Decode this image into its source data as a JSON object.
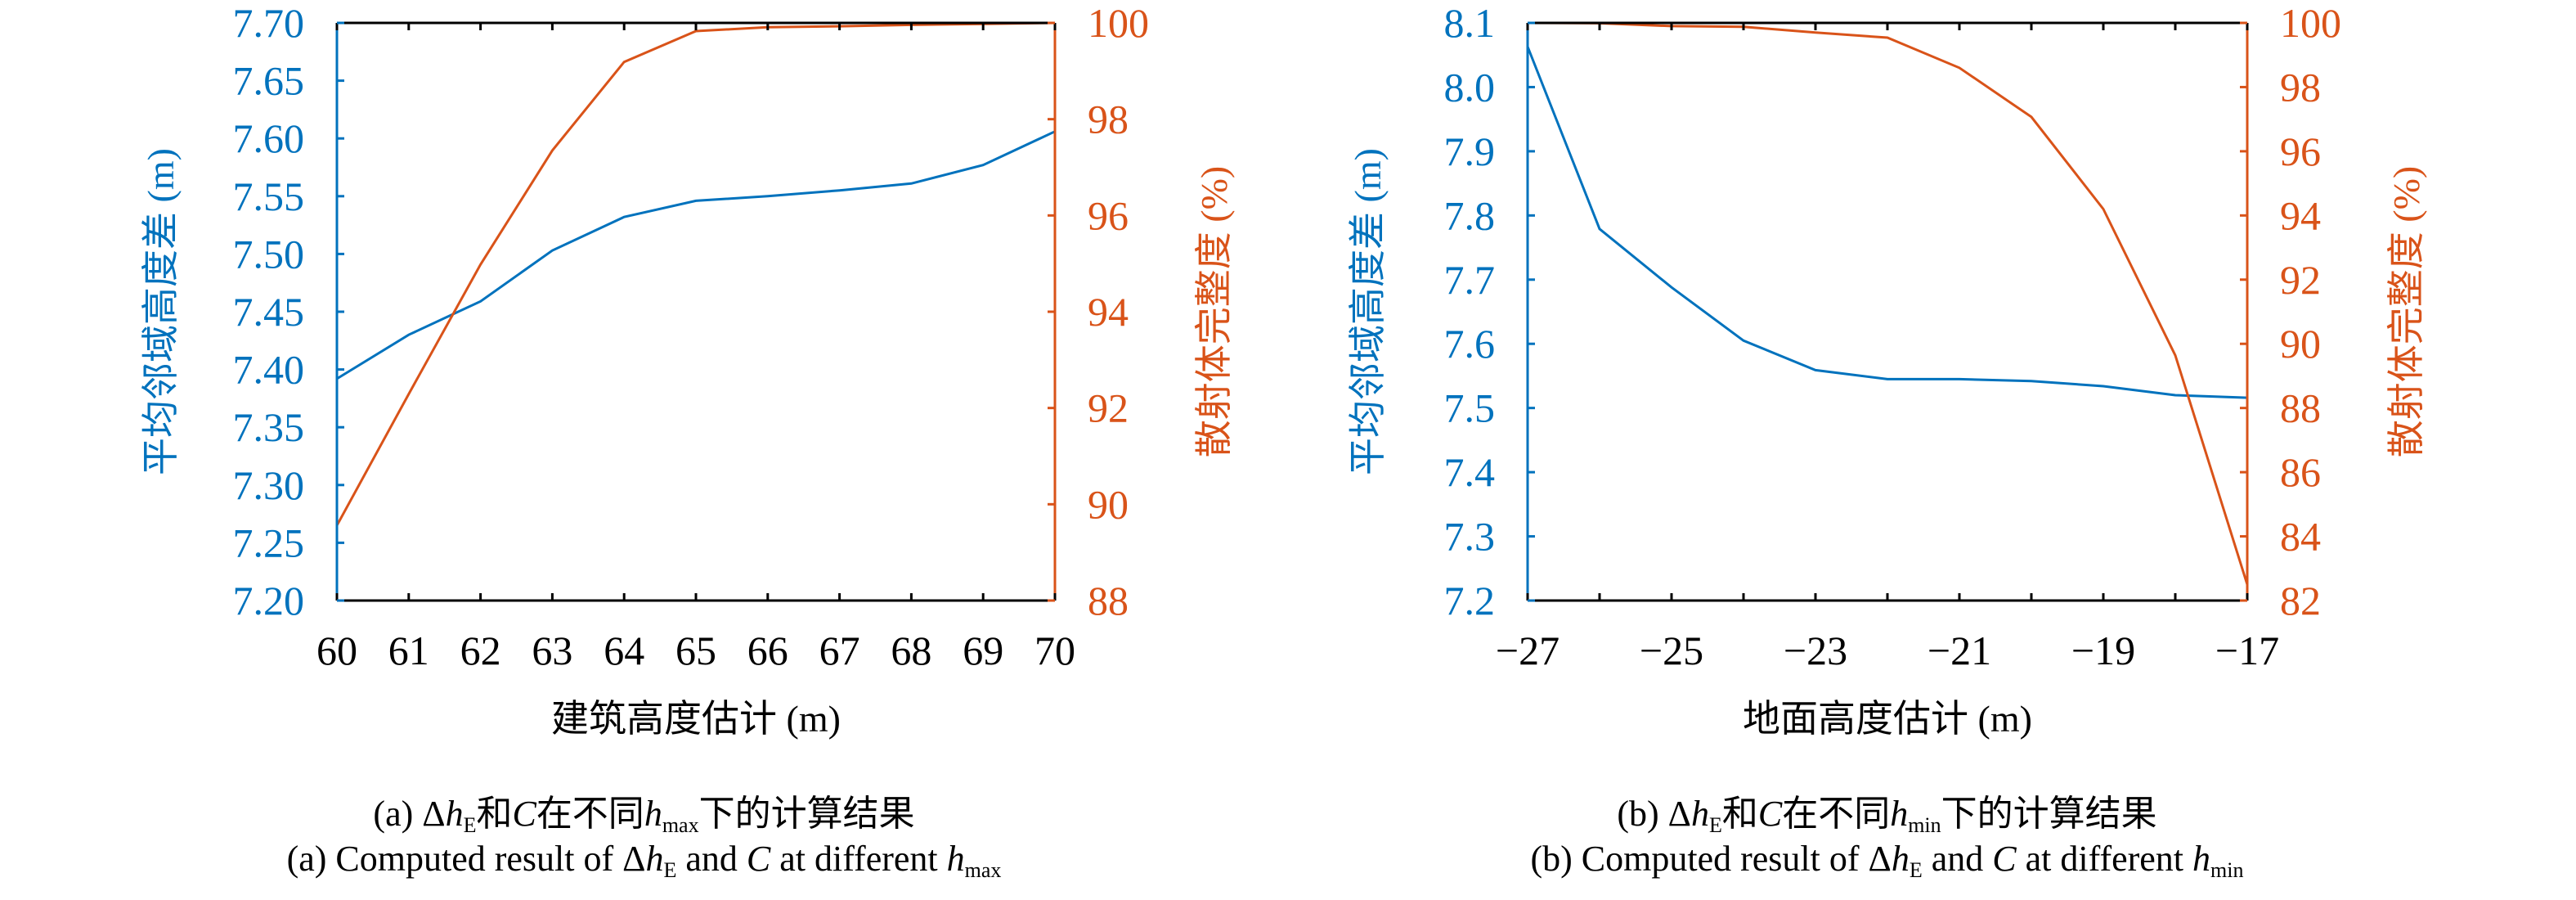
{
  "colors": {
    "left_series": "#0072BD",
    "right_series": "#D95319",
    "axis": "#000000"
  },
  "chart_data": [
    {
      "type": "line",
      "panel": "a",
      "xlabel": "建筑高度估计 (m)",
      "ylabel_left": "平均邻域高度差 (m)",
      "ylabel_right": "散射体完整度 (%)",
      "xlim": [
        60,
        70
      ],
      "ylim_left": [
        7.2,
        7.7
      ],
      "ylim_right": [
        88,
        100
      ],
      "x_ticks": [
        60,
        61,
        62,
        63,
        64,
        65,
        66,
        67,
        68,
        69,
        70
      ],
      "x_tick_labels": [
        "60",
        "61",
        "62",
        "63",
        "64",
        "65",
        "66",
        "67",
        "68",
        "69",
        "70"
      ],
      "y_left_ticks": [
        7.2,
        7.25,
        7.3,
        7.35,
        7.4,
        7.45,
        7.5,
        7.55,
        7.6,
        7.65,
        7.7
      ],
      "y_left_tick_labels": [
        "7.20",
        "7.25",
        "7.30",
        "7.35",
        "7.40",
        "7.45",
        "7.50",
        "7.55",
        "7.60",
        "7.65",
        "7.70"
      ],
      "y_right_ticks": [
        88,
        90,
        92,
        94,
        96,
        98,
        100
      ],
      "y_right_tick_labels": [
        "88",
        "90",
        "92",
        "94",
        "96",
        "98",
        "100"
      ],
      "x": [
        60,
        61,
        62,
        63,
        64,
        65,
        66,
        67,
        68,
        69,
        70
      ],
      "series": [
        {
          "name": "平均邻域高度差",
          "axis": "left",
          "values": [
            7.392,
            7.43,
            7.459,
            7.503,
            7.532,
            7.546,
            7.55,
            7.555,
            7.561,
            7.577,
            7.606
          ]
        },
        {
          "name": "散射体完整度",
          "axis": "right",
          "values": [
            89.56,
            92.29,
            94.98,
            97.35,
            99.19,
            99.83,
            99.91,
            99.93,
            99.96,
            99.98,
            100.0
          ]
        }
      ],
      "caption_cn": {
        "prefix": "(a) Δ",
        "h": "h",
        "sub_E": "E",
        "and": "和",
        "C": "C",
        "mid": "在不同",
        "h2": "h",
        "sub_max": "max",
        "suffix": "下的计算结果"
      },
      "caption_en": {
        "prefix": "(a) Computed result of Δ",
        "h": "h",
        "sub_E": "E",
        "and": " and ",
        "C": "C",
        "mid": " at different ",
        "h2": "h",
        "sub_max": "max"
      }
    },
    {
      "type": "line",
      "panel": "b",
      "xlabel": "地面高度估计 (m)",
      "ylabel_left": "平均邻域高度差 (m)",
      "ylabel_right": "散射体完整度 (%)",
      "xlim": [
        -27,
        -17
      ],
      "ylim_left": [
        7.2,
        8.1
      ],
      "ylim_right": [
        82,
        100
      ],
      "x_ticks": [
        -27,
        -26,
        -25,
        -24,
        -23,
        -22,
        -21,
        -20,
        -19,
        -18,
        -17
      ],
      "x_tick_labels": [
        "−27",
        "",
        "−25",
        "",
        "−23",
        "",
        "−21",
        "",
        "−19",
        "",
        "−17"
      ],
      "y_left_ticks": [
        7.2,
        7.3,
        7.4,
        7.5,
        7.6,
        7.7,
        7.8,
        7.9,
        8.0,
        8.1
      ],
      "y_left_tick_labels": [
        "7.2",
        "7.3",
        "7.4",
        "7.5",
        "7.6",
        "7.7",
        "7.8",
        "7.9",
        "8.0",
        "8.1"
      ],
      "y_right_ticks": [
        82,
        84,
        86,
        88,
        90,
        92,
        94,
        96,
        98,
        100
      ],
      "y_right_tick_labels": [
        "82",
        "84",
        "86",
        "88",
        "90",
        "92",
        "94",
        "96",
        "98",
        "100"
      ],
      "x": [
        -27,
        -26,
        -25,
        -24,
        -23,
        -22,
        -21,
        -20,
        -19,
        -18,
        -17
      ],
      "series": [
        {
          "name": "平均邻域高度差",
          "axis": "left",
          "values": [
            8.063,
            7.779,
            7.688,
            7.605,
            7.559,
            7.545,
            7.545,
            7.542,
            7.534,
            7.52,
            7.516
          ]
        },
        {
          "name": "散射体完整度",
          "axis": "right",
          "values": [
            100.0,
            99.99,
            99.9,
            99.88,
            99.7,
            99.54,
            98.6,
            97.07,
            94.2,
            89.64,
            82.5
          ]
        }
      ],
      "caption_cn": {
        "prefix": "(b) Δ",
        "h": "h",
        "sub_E": "E",
        "and": "和",
        "C": "C",
        "mid": "在不同",
        "h2": "h",
        "sub_max": "min",
        "suffix": "下的计算结果"
      },
      "caption_en": {
        "prefix": "(b) Computed result of Δ",
        "h": "h",
        "sub_E": "E",
        "and": " and ",
        "C": "C",
        "mid": " at different ",
        "h2": "h",
        "sub_max": "min"
      }
    }
  ]
}
